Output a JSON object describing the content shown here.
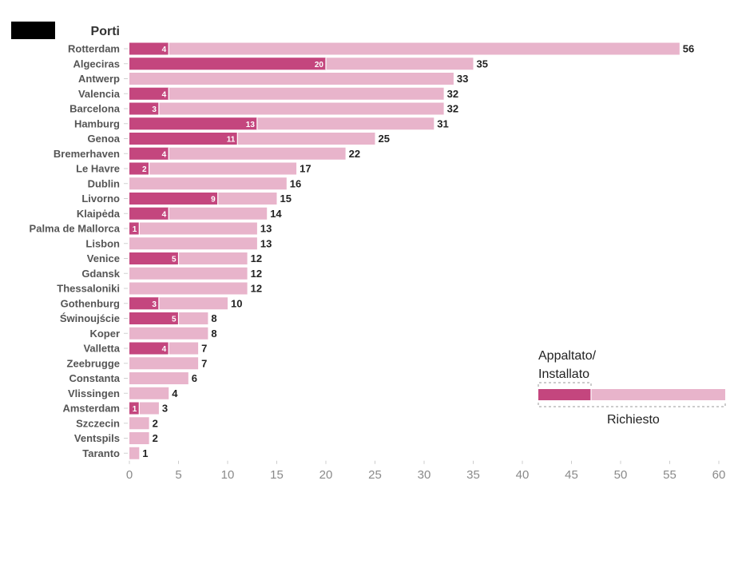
{
  "chart_data": {
    "type": "bar",
    "orientation": "horizontal",
    "category_axis_title": "Porti",
    "categories": [
      "Rotterdam",
      "Algeciras",
      "Antwerp",
      "Valencia",
      "Barcelona",
      "Hamburg",
      "Genoa",
      "Bremerhaven",
      "Le Havre",
      "Dublin",
      "Livorno",
      "Klaipėda",
      "Palma de Mallorca",
      "Lisbon",
      "Venice",
      "Gdansk",
      "Thessaloniki",
      "Gothenburg",
      "Świnoujście",
      "Koper",
      "Valletta",
      "Zeebrugge",
      "Constanta",
      "Vlissingen",
      "Amsterdam",
      "Szczecin",
      "Ventspils",
      "Taranto"
    ],
    "series": [
      {
        "name": "Richiesto",
        "color": "#e8b4cb",
        "values": [
          56,
          35,
          33,
          32,
          32,
          31,
          25,
          22,
          17,
          16,
          15,
          14,
          13,
          13,
          12,
          12,
          12,
          10,
          8,
          8,
          7,
          7,
          6,
          4,
          3,
          2,
          2,
          1
        ]
      },
      {
        "name": "Appaltato/Installato",
        "color": "#c4467e",
        "values": [
          4,
          20,
          null,
          4,
          3,
          13,
          11,
          4,
          2,
          null,
          9,
          4,
          1,
          null,
          5,
          null,
          null,
          3,
          5,
          null,
          4,
          null,
          null,
          null,
          1,
          null,
          null,
          null
        ]
      }
    ],
    "xlim": [
      0,
      60
    ],
    "xticks": [
      0,
      5,
      10,
      15,
      20,
      25,
      30,
      35,
      40,
      45,
      50,
      55,
      60
    ],
    "legend": {
      "position": "right",
      "installed_label": "Appaltato/\nInstallato",
      "requested_label": "Richiesto"
    }
  }
}
